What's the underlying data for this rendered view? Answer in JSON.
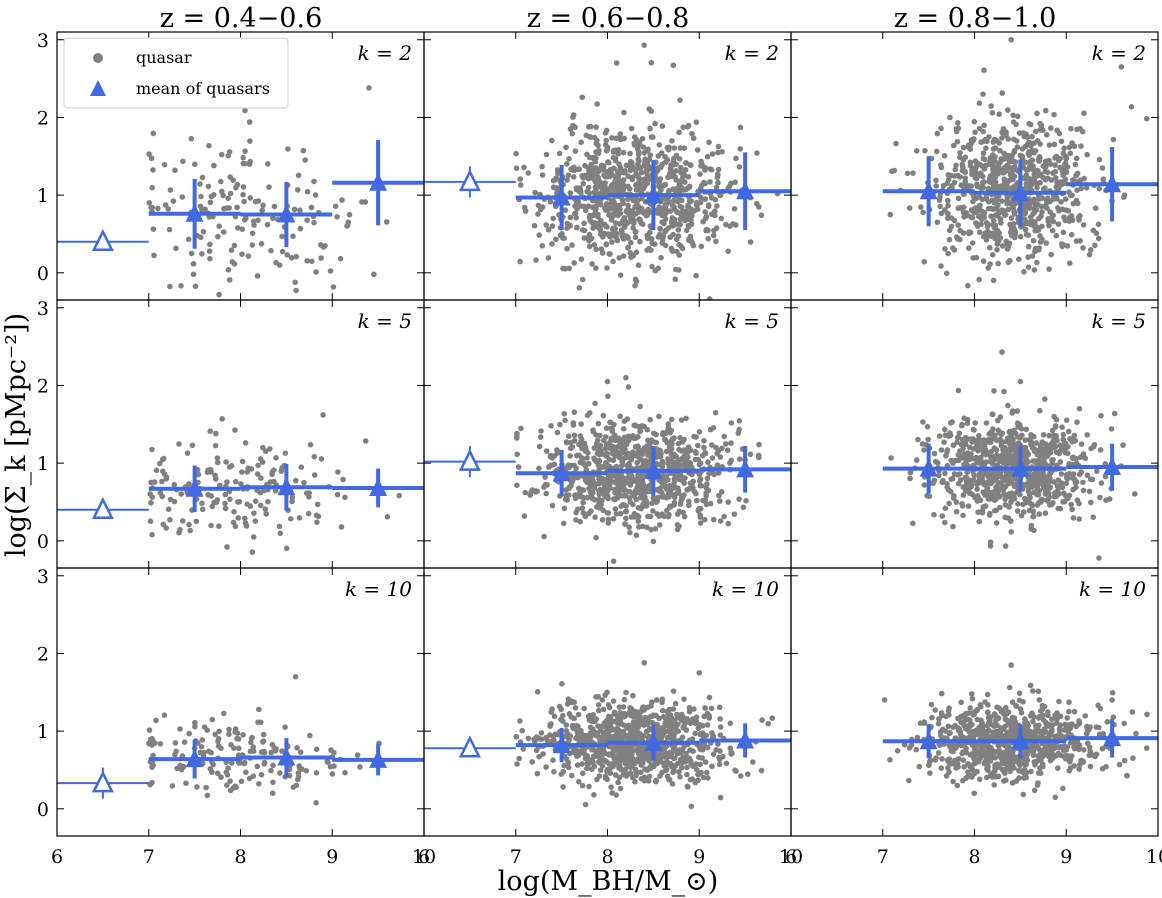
{
  "chart_data": {
    "type": "scatter",
    "description": "3x3 grid of scatter plots: surface density log(Sigma_k) vs log(M_BH/M_sun) for quasars in three redshift bins and three k values",
    "xlabel": "log(M_BH/M_⊙)",
    "ylabel": "log(Σ_k [pMpc⁻²])",
    "xlim": [
      6,
      10
    ],
    "ylim": [
      -0.35,
      3.1
    ],
    "xticks": [
      6,
      7,
      8,
      9,
      10
    ],
    "yticks": [
      0,
      1,
      2,
      3
    ],
    "column_titles": [
      "z = 0.4−0.6",
      "z = 0.6−0.8",
      "z = 0.8−1.0"
    ],
    "row_labels": [
      "k = 2",
      "k = 5",
      "k = 10"
    ],
    "legend": {
      "position": "upper-left of top-left panel",
      "entries": [
        {
          "label": "quasar",
          "marker": "circle",
          "color": "#808080"
        },
        {
          "label": "mean of quasars",
          "marker": "triangle",
          "color": "#4169E1"
        }
      ]
    },
    "colors": {
      "scatter": "#808080",
      "mean": "#4169E1"
    },
    "panels": [
      {
        "row": 0,
        "col": 0,
        "label": "k = 2",
        "n_points": 170,
        "x_center": 8.0,
        "x_sd": 0.65,
        "y_mean": 0.75,
        "y_sd": 0.45,
        "extra_points": [
          [
            9.4,
            2.38
          ],
          [
            8.1,
            1.94
          ]
        ],
        "bins": [
          {
            "x": 6.5,
            "xlo": 6.0,
            "xhi": 7.0,
            "y": 0.4,
            "yerr": 0.0,
            "open": true
          },
          {
            "x": 7.5,
            "xlo": 7.0,
            "xhi": 8.0,
            "y": 0.76,
            "yerr": 0.45,
            "open": false
          },
          {
            "x": 8.5,
            "xlo": 8.0,
            "xhi": 9.0,
            "y": 0.75,
            "yerr": 0.42,
            "open": false
          },
          {
            "x": 9.5,
            "xlo": 9.0,
            "xhi": 10.0,
            "y": 1.16,
            "yerr": 0.55,
            "open": false
          }
        ]
      },
      {
        "row": 0,
        "col": 1,
        "label": "k = 2",
        "n_points": 900,
        "x_center": 8.3,
        "x_sd": 0.5,
        "y_mean": 1.0,
        "y_sd": 0.45,
        "extra_points": [
          [
            8.4,
            2.93
          ],
          [
            8.1,
            2.7
          ]
        ],
        "bins": [
          {
            "x": 6.5,
            "xlo": 6.0,
            "xhi": 7.0,
            "y": 1.17,
            "yerr": 0.2,
            "open": true
          },
          {
            "x": 7.5,
            "xlo": 7.0,
            "xhi": 8.0,
            "y": 0.97,
            "yerr": 0.42,
            "open": false
          },
          {
            "x": 8.5,
            "xlo": 8.0,
            "xhi": 9.0,
            "y": 1.0,
            "yerr": 0.45,
            "open": false
          },
          {
            "x": 9.5,
            "xlo": 9.0,
            "xhi": 10.0,
            "y": 1.05,
            "yerr": 0.5,
            "open": false
          }
        ]
      },
      {
        "row": 0,
        "col": 2,
        "label": "k = 2",
        "n_points": 800,
        "x_center": 8.4,
        "x_sd": 0.45,
        "y_mean": 1.05,
        "y_sd": 0.45,
        "extra_points": [
          [
            8.4,
            3.0
          ],
          [
            9.6,
            2.65
          ]
        ],
        "bins": [
          {
            "x": 7.5,
            "xlo": 7.0,
            "xhi": 8.0,
            "y": 1.05,
            "yerr": 0.45,
            "open": false
          },
          {
            "x": 8.5,
            "xlo": 8.0,
            "xhi": 9.0,
            "y": 1.03,
            "yerr": 0.43,
            "open": false
          },
          {
            "x": 9.5,
            "xlo": 9.0,
            "xhi": 10.0,
            "y": 1.14,
            "yerr": 0.48,
            "open": false
          }
        ]
      },
      {
        "row": 1,
        "col": 0,
        "label": "k = 5",
        "n_points": 170,
        "x_center": 8.0,
        "x_sd": 0.65,
        "y_mean": 0.7,
        "y_sd": 0.33,
        "extra_points": [
          [
            8.9,
            1.62
          ],
          [
            7.8,
            1.57
          ]
        ],
        "bins": [
          {
            "x": 6.5,
            "xlo": 6.0,
            "xhi": 7.0,
            "y": 0.4,
            "yerr": 0.0,
            "open": true
          },
          {
            "x": 7.5,
            "xlo": 7.0,
            "xhi": 8.0,
            "y": 0.67,
            "yerr": 0.3,
            "open": false
          },
          {
            "x": 8.5,
            "xlo": 8.0,
            "xhi": 9.0,
            "y": 0.69,
            "yerr": 0.3,
            "open": false
          },
          {
            "x": 9.5,
            "xlo": 9.0,
            "xhi": 10.0,
            "y": 0.68,
            "yerr": 0.25,
            "open": false
          }
        ]
      },
      {
        "row": 1,
        "col": 1,
        "label": "k = 5",
        "n_points": 900,
        "x_center": 8.3,
        "x_sd": 0.5,
        "y_mean": 0.9,
        "y_sd": 0.32,
        "extra_points": [
          [
            8.2,
            2.1
          ],
          [
            8.0,
            2.05
          ]
        ],
        "bins": [
          {
            "x": 6.5,
            "xlo": 6.0,
            "xhi": 7.0,
            "y": 1.02,
            "yerr": 0.2,
            "open": true
          },
          {
            "x": 7.5,
            "xlo": 7.0,
            "xhi": 8.0,
            "y": 0.87,
            "yerr": 0.3,
            "open": false
          },
          {
            "x": 8.5,
            "xlo": 8.0,
            "xhi": 9.0,
            "y": 0.9,
            "yerr": 0.32,
            "open": false
          },
          {
            "x": 9.5,
            "xlo": 9.0,
            "xhi": 10.0,
            "y": 0.92,
            "yerr": 0.3,
            "open": false
          }
        ]
      },
      {
        "row": 1,
        "col": 2,
        "label": "k = 5",
        "n_points": 800,
        "x_center": 8.4,
        "x_sd": 0.45,
        "y_mean": 0.92,
        "y_sd": 0.32,
        "extra_points": [
          [
            8.3,
            2.43
          ],
          [
            8.5,
            2.05
          ]
        ],
        "bins": [
          {
            "x": 7.5,
            "xlo": 7.0,
            "xhi": 8.0,
            "y": 0.93,
            "yerr": 0.32,
            "open": false
          },
          {
            "x": 8.5,
            "xlo": 8.0,
            "xhi": 9.0,
            "y": 0.93,
            "yerr": 0.3,
            "open": false
          },
          {
            "x": 9.5,
            "xlo": 9.0,
            "xhi": 10.0,
            "y": 0.95,
            "yerr": 0.3,
            "open": false
          }
        ]
      },
      {
        "row": 2,
        "col": 0,
        "label": "k = 10",
        "n_points": 170,
        "x_center": 8.0,
        "x_sd": 0.65,
        "y_mean": 0.65,
        "y_sd": 0.25,
        "extra_points": [
          [
            8.6,
            1.7
          ],
          [
            8.2,
            1.28
          ]
        ],
        "bins": [
          {
            "x": 6.5,
            "xlo": 6.0,
            "xhi": 7.0,
            "y": 0.33,
            "yerr": 0.2,
            "open": true
          },
          {
            "x": 7.5,
            "xlo": 7.0,
            "xhi": 8.0,
            "y": 0.64,
            "yerr": 0.25,
            "open": false
          },
          {
            "x": 8.5,
            "xlo": 8.0,
            "xhi": 9.0,
            "y": 0.66,
            "yerr": 0.25,
            "open": false
          },
          {
            "x": 9.5,
            "xlo": 9.0,
            "xhi": 10.0,
            "y": 0.63,
            "yerr": 0.2,
            "open": false
          }
        ]
      },
      {
        "row": 2,
        "col": 1,
        "label": "k = 10",
        "n_points": 900,
        "x_center": 8.3,
        "x_sd": 0.5,
        "y_mean": 0.85,
        "y_sd": 0.25,
        "extra_points": [
          [
            8.4,
            1.88
          ],
          [
            9.0,
            1.75
          ]
        ],
        "bins": [
          {
            "x": 6.5,
            "xlo": 6.0,
            "xhi": 7.0,
            "y": 0.78,
            "yerr": 0.0,
            "open": true
          },
          {
            "x": 7.5,
            "xlo": 7.0,
            "xhi": 8.0,
            "y": 0.82,
            "yerr": 0.22,
            "open": false
          },
          {
            "x": 8.5,
            "xlo": 8.0,
            "xhi": 9.0,
            "y": 0.85,
            "yerr": 0.23,
            "open": false
          },
          {
            "x": 9.5,
            "xlo": 9.0,
            "xhi": 10.0,
            "y": 0.88,
            "yerr": 0.22,
            "open": false
          }
        ]
      },
      {
        "row": 2,
        "col": 2,
        "label": "k = 10",
        "n_points": 800,
        "x_center": 8.4,
        "x_sd": 0.45,
        "y_mean": 0.87,
        "y_sd": 0.25,
        "extra_points": [
          [
            8.4,
            1.85
          ],
          [
            9.5,
            1.4
          ]
        ],
        "bins": [
          {
            "x": 7.5,
            "xlo": 7.0,
            "xhi": 8.0,
            "y": 0.87,
            "yerr": 0.22,
            "open": false
          },
          {
            "x": 8.5,
            "xlo": 8.0,
            "xhi": 9.0,
            "y": 0.87,
            "yerr": 0.22,
            "open": false
          },
          {
            "x": 9.5,
            "xlo": 9.0,
            "xhi": 10.0,
            "y": 0.91,
            "yerr": 0.25,
            "open": false
          }
        ]
      }
    ]
  }
}
